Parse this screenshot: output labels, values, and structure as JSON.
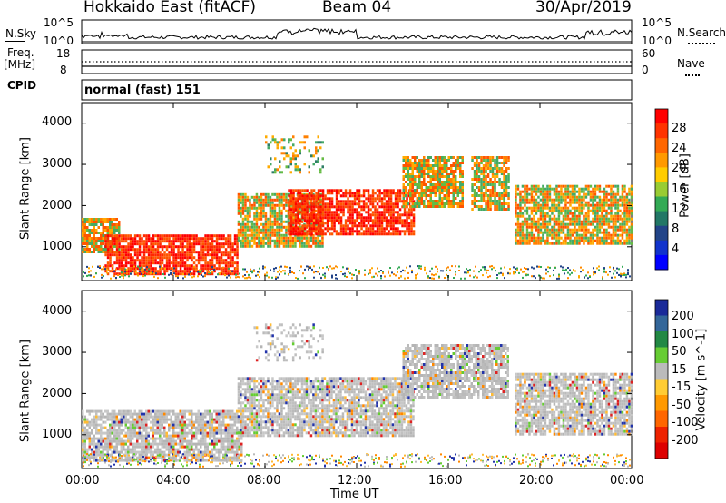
{
  "header": {
    "title": "Hokkaido East (fitACF)",
    "beam": "Beam 04",
    "date": "30/Apr/2019"
  },
  "status_panels": {
    "nsky_label": "N.Sky",
    "nsky_ticks": [
      "10^5",
      "10^0"
    ],
    "nsearch_label": "N.Search",
    "nsearch_ticks": [
      "10^5",
      "10^0"
    ],
    "freq_label_1": "Freq.",
    "freq_label_2": "[MHz]",
    "freq_ticks": [
      "18",
      "8"
    ],
    "nave_label": "Nave",
    "nave_ticks": [
      "60",
      "0"
    ],
    "cpid_label": "CPID",
    "cpid_value": "normal (fast) 151"
  },
  "chart_data": [
    {
      "type": "heatmap",
      "name": "power",
      "ylabel": "Slant Range [km]",
      "y_ticks": [
        "4000",
        "3000",
        "2000",
        "1000"
      ],
      "ylim": [
        180,
        4500
      ],
      "colorbar_label": "Power [dB]",
      "colorbar_ticks": [
        "28",
        "24",
        "20",
        "16",
        "12",
        "8",
        "4"
      ],
      "colorbar_colors": [
        "#ff0000",
        "#ff3300",
        "#ff6600",
        "#ff9900",
        "#ffcc00",
        "#99cc33",
        "#33aa55",
        "#227766",
        "#224488",
        "#1133cc",
        "#0000ff"
      ],
      "echo_regions": [
        {
          "t_start": 0.0,
          "t_end": 1.6,
          "r_low": 900,
          "r_high": 1700,
          "level": "mid"
        },
        {
          "t_start": 1.0,
          "t_end": 6.8,
          "r_low": 350,
          "r_high": 1300,
          "level": "high"
        },
        {
          "t_start": 6.8,
          "t_end": 10.5,
          "r_low": 1000,
          "r_high": 2300,
          "level": "mid"
        },
        {
          "t_start": 9.0,
          "t_end": 14.5,
          "r_low": 1300,
          "r_high": 2400,
          "level": "high"
        },
        {
          "t_start": 14.0,
          "t_end": 16.6,
          "r_low": 2000,
          "r_high": 3200,
          "level": "mid"
        },
        {
          "t_start": 17.0,
          "t_end": 18.6,
          "r_low": 1900,
          "r_high": 3200,
          "level": "mid"
        },
        {
          "t_start": 18.9,
          "t_end": 24.0,
          "r_low": 1100,
          "r_high": 2500,
          "level": "mid"
        },
        {
          "t_start": 8.0,
          "t_end": 10.5,
          "r_low": 2800,
          "r_high": 3700,
          "level": "low"
        }
      ]
    },
    {
      "type": "heatmap",
      "name": "velocity",
      "ylabel": "Slant Range [km]",
      "y_ticks": [
        "4000",
        "3000",
        "2000",
        "1000"
      ],
      "ylim": [
        180,
        4500
      ],
      "colorbar_label": "Velocity [m s^-1]",
      "colorbar_ticks": [
        "200",
        "100",
        "50",
        "15",
        "-15",
        "-50",
        "-100",
        "-200"
      ],
      "colorbar_colors": [
        "#1a2a99",
        "#336699",
        "#228844",
        "#66cc33",
        "#bbbbbb",
        "#ffcc33",
        "#ff9900",
        "#ff6600",
        "#ee2200",
        "#dd0000"
      ],
      "echo_regions": [
        {
          "t_start": 0.0,
          "t_end": 7.0,
          "r_low": 400,
          "r_high": 1600,
          "level": "ground"
        },
        {
          "t_start": 6.8,
          "t_end": 14.5,
          "r_low": 1000,
          "r_high": 2400,
          "level": "ground"
        },
        {
          "t_start": 14.0,
          "t_end": 18.6,
          "r_low": 1900,
          "r_high": 3200,
          "level": "ground"
        },
        {
          "t_start": 18.9,
          "t_end": 24.0,
          "r_low": 1000,
          "r_high": 2500,
          "level": "ground"
        },
        {
          "t_start": 7.5,
          "t_end": 10.5,
          "r_low": 2800,
          "r_high": 3700,
          "level": "low"
        }
      ]
    }
  ],
  "x_ticks": [
    "00:00",
    "04:00",
    "08:00",
    "12:00",
    "16:00",
    "20:00",
    "00:00"
  ],
  "xlabel": "Time UT"
}
